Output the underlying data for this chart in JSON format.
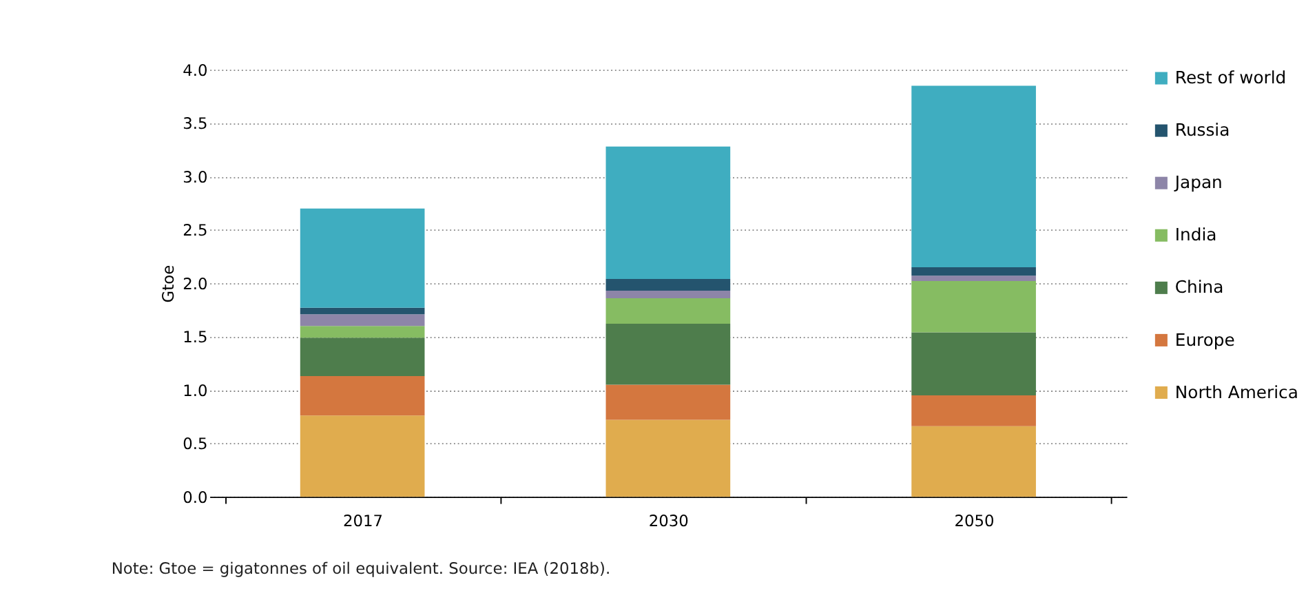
{
  "chart_data": {
    "type": "bar",
    "stacked": true,
    "ylabel": "Gtoe",
    "categories": [
      "2017",
      "2030",
      "2050"
    ],
    "series": [
      {
        "name": "North America",
        "color": "#e0ac4e",
        "values": [
          0.76,
          0.72,
          0.66
        ]
      },
      {
        "name": "Europe",
        "color": "#d4773f",
        "values": [
          0.37,
          0.33,
          0.29
        ]
      },
      {
        "name": "China",
        "color": "#4e7d4c",
        "values": [
          0.36,
          0.57,
          0.59
        ]
      },
      {
        "name": "India",
        "color": "#86bc62",
        "values": [
          0.11,
          0.24,
          0.48
        ]
      },
      {
        "name": "Japan",
        "color": "#8d85a8",
        "values": [
          0.11,
          0.07,
          0.05
        ]
      },
      {
        "name": "Russia",
        "color": "#24546e",
        "values": [
          0.06,
          0.11,
          0.08
        ]
      },
      {
        "name": "Rest of world",
        "color": "#3fadc0",
        "values": [
          0.93,
          1.24,
          1.7
        ]
      }
    ],
    "ylim": [
      0,
      4.0
    ],
    "yticks": [
      {
        "value": 0,
        "label": "0.0"
      },
      {
        "value": 0.5,
        "label": "0.5"
      },
      {
        "value": 1.0,
        "label": "1.0"
      },
      {
        "value": 1.5,
        "label": "1.5"
      },
      {
        "value": 2.0,
        "label": "2.0"
      },
      {
        "value": 2.5,
        "label": "2.5"
      },
      {
        "value": 3.0,
        "label": "3.0"
      },
      {
        "value": 3.5,
        "label": "3.5"
      },
      {
        "value": 4.0,
        "label": "4.0"
      }
    ],
    "grid": "y",
    "legend": "right",
    "annotations": [
      "Note: Gtoe = gigatonnes of oil equivalent. Source: IEA (2018b)."
    ]
  }
}
